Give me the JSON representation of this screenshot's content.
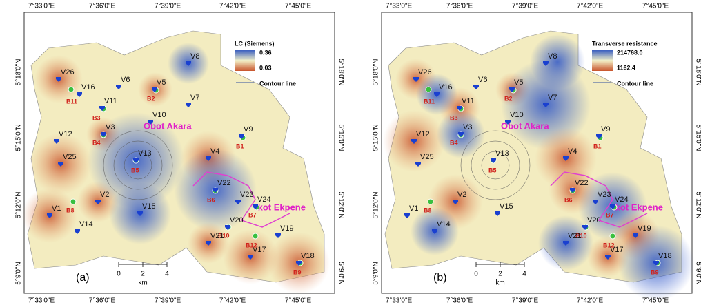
{
  "panels": [
    {
      "label": "(a)",
      "lon_labels": [
        "7°33'0\"E",
        "7°36'0\"E",
        "7°39'0\"E",
        "7°42'0\"E",
        "7°45'0\"E"
      ],
      "lat_labels": [
        "5°18'0\"N",
        "5°15'0\"N",
        "5°12'0\"N",
        "5°9'0\"N"
      ],
      "legend": {
        "title": "LC (Siemens)",
        "max": "0.36",
        "min": "0.03",
        "contour": "Contour line"
      },
      "scale": {
        "ticks": [
          "0",
          "2",
          "4"
        ],
        "unit": "km"
      },
      "towns": [
        "Obot Akara",
        "Ikot Ekpene"
      ],
      "v_points": [
        "V1",
        "V2",
        "V3",
        "V4",
        "V5",
        "V6",
        "V7",
        "V8",
        "V9",
        "V10",
        "V11",
        "V12",
        "V13",
        "V14",
        "V15",
        "V16",
        "V17",
        "V18",
        "V19",
        "V20",
        "V21",
        "V22",
        "V23",
        "V24",
        "V25",
        "V26"
      ],
      "b_points": [
        "B1",
        "B2",
        "B3",
        "B4",
        "B5",
        "B6",
        "B7",
        "B8",
        "B9",
        "B10",
        "B11",
        "B12"
      ]
    },
    {
      "label": "(b)",
      "lon_labels": [
        "7°33'0\"E",
        "7°36'0\"E",
        "7°39'0\"E",
        "7°42'0\"E",
        "7°45'0\"E"
      ],
      "lat_labels": [
        "5°18'0\"N",
        "5°15'0\"N",
        "5°12'0\"N",
        "5°9'0\"N"
      ],
      "legend": {
        "title": "Transverse resistance",
        "max": "214768.0",
        "min": "1162.4",
        "contour": "Contour line"
      },
      "scale": {
        "ticks": [
          "0",
          "2",
          "4"
        ],
        "unit": "km"
      },
      "towns": [
        "Obot Akara",
        "Ikot Ekpene"
      ],
      "v_points": [
        "V1",
        "V2",
        "V3",
        "V4",
        "V5",
        "V6",
        "V7",
        "V8",
        "V9",
        "V10",
        "V11",
        "V12",
        "V13",
        "V14",
        "V15",
        "V16",
        "V17",
        "V18",
        "V19",
        "V20",
        "V21",
        "V22",
        "V23",
        "V24",
        "V25",
        "V26"
      ],
      "b_points": [
        "B1",
        "B2",
        "B3",
        "B4",
        "B5",
        "B6",
        "B7",
        "B8",
        "B9",
        "B10",
        "B11",
        "B12"
      ]
    }
  ]
}
